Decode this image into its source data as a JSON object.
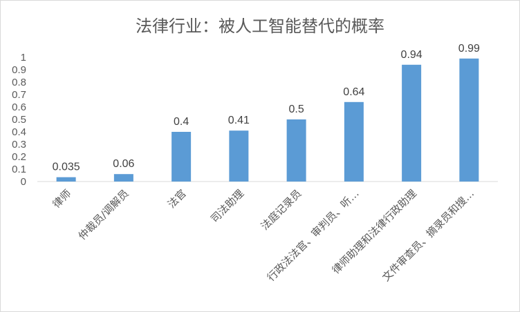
{
  "chart_data": {
    "type": "bar",
    "title": "法律行业：被人工智能替代的概率",
    "xlabel": "",
    "ylabel": "",
    "ylim": [
      0,
      1
    ],
    "yticks": [
      "0",
      "0.1",
      "0.2",
      "0.3",
      "0.4",
      "0.5",
      "0.6",
      "0.7",
      "0.8",
      "0.9",
      "1"
    ],
    "grid": false,
    "legend": "none",
    "bar_color": "#5b9bd5",
    "categories": [
      "律师",
      "仲裁员/调解员",
      "法官",
      "司法助理",
      "法庭记录员",
      "行政法法官、审判员、听…",
      "律师助理和法律行政助理",
      "文件审查员、摘录员和搜…"
    ],
    "values": [
      0.035,
      0.06,
      0.4,
      0.41,
      0.5,
      0.64,
      0.94,
      0.99
    ],
    "data_labels": [
      "0.035",
      "0.06",
      "0.4",
      "0.41",
      "0.5",
      "0.64",
      "0.94",
      "0.99"
    ]
  }
}
